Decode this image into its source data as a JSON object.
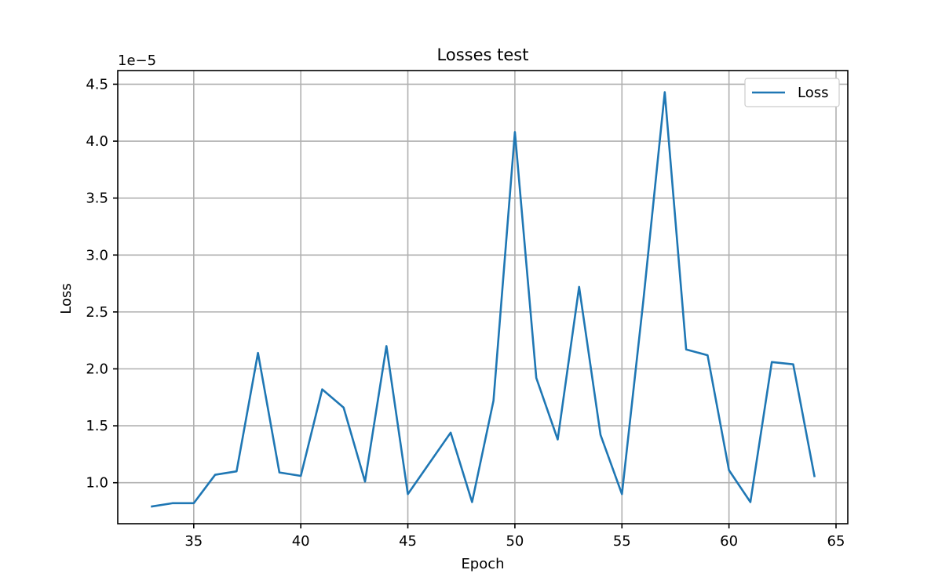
{
  "chart_data": {
    "type": "line",
    "title": "Losses test",
    "xlabel": "Epoch",
    "ylabel": "Loss",
    "y_offset_label": "1e−5",
    "xlim": [
      31.45,
      65.55
    ],
    "ylim": [
      0.64,
      4.62
    ],
    "xticks": [
      35,
      40,
      45,
      50,
      55,
      60,
      65
    ],
    "xtick_labels": [
      "35",
      "40",
      "45",
      "50",
      "55",
      "60",
      "65"
    ],
    "yticks": [
      1.0,
      1.5,
      2.0,
      2.5,
      3.0,
      3.5,
      4.0,
      4.5
    ],
    "ytick_labels": [
      "1.0",
      "1.5",
      "2.0",
      "2.5",
      "3.0",
      "3.5",
      "4.0",
      "4.5"
    ],
    "grid": true,
    "legend_position": "top-right",
    "series": [
      {
        "name": "Loss",
        "color": "#1f77b4",
        "x": [
          33,
          34,
          35,
          36,
          37,
          38,
          39,
          40,
          41,
          42,
          43,
          44,
          45,
          46,
          47,
          48,
          49,
          50,
          51,
          52,
          53,
          54,
          55,
          56,
          57,
          58,
          59,
          60,
          61,
          62,
          63,
          64
        ],
        "y": [
          0.79,
          0.82,
          0.82,
          1.07,
          1.1,
          2.14,
          1.09,
          1.06,
          1.82,
          1.66,
          1.01,
          2.2,
          0.9,
          1.17,
          1.44,
          0.83,
          1.72,
          4.08,
          1.92,
          1.38,
          2.72,
          1.42,
          0.9,
          2.6,
          4.43,
          2.17,
          2.12,
          1.11,
          0.83,
          2.06,
          2.04,
          1.05
        ]
      }
    ]
  }
}
